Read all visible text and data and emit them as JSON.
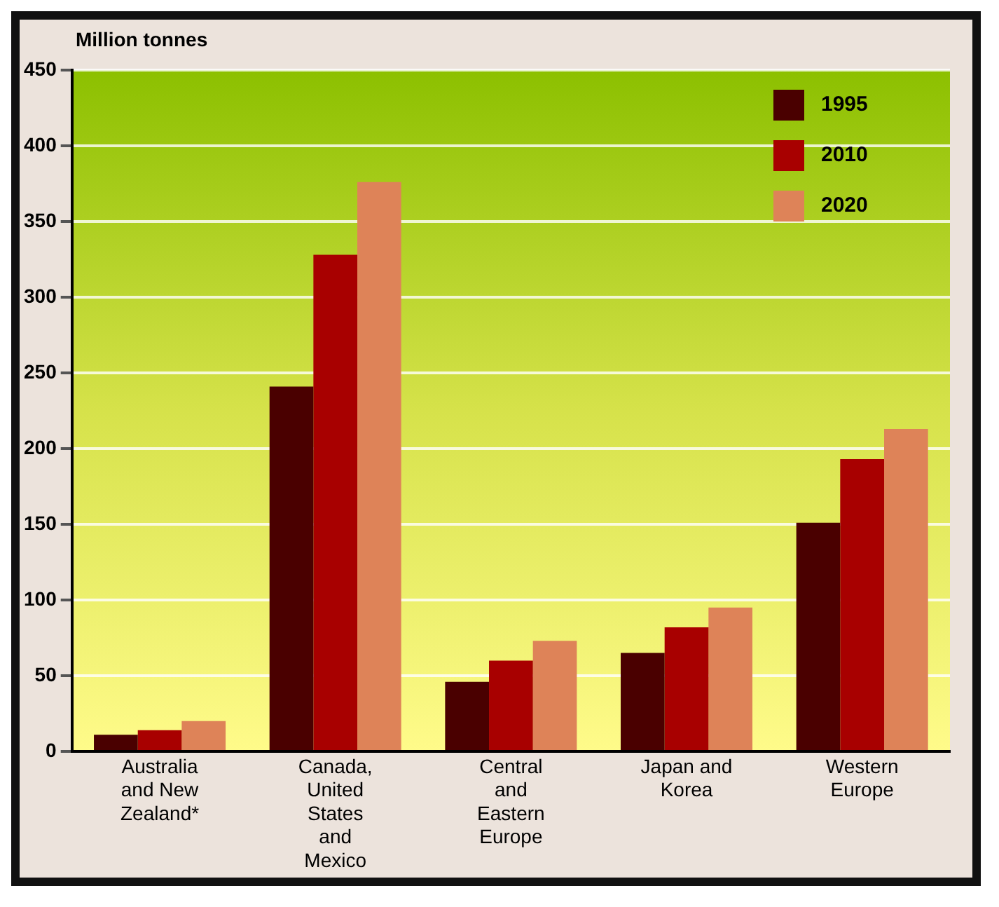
{
  "chart_data": {
    "type": "bar",
    "ylabel": "Million tonnes",
    "categories": [
      "Australia and New Zealand*",
      "Canada, United States and Mexico",
      "Central and Eastern Europe",
      "Japan and Korea",
      "Western Europe"
    ],
    "series": [
      {
        "name": "1995",
        "color": "#4a0000",
        "values": [
          11,
          241,
          46,
          65,
          151
        ]
      },
      {
        "name": "2010",
        "color": "#a80000",
        "values": [
          14,
          328,
          60,
          82,
          193
        ]
      },
      {
        "name": "2020",
        "color": "#de8358",
        "values": [
          20,
          376,
          73,
          95,
          213
        ]
      }
    ],
    "ylim": [
      0,
      450
    ],
    "yticks": [
      0,
      50,
      100,
      150,
      200,
      250,
      300,
      350,
      400,
      450
    ],
    "grid": "y",
    "legend": "top right"
  }
}
